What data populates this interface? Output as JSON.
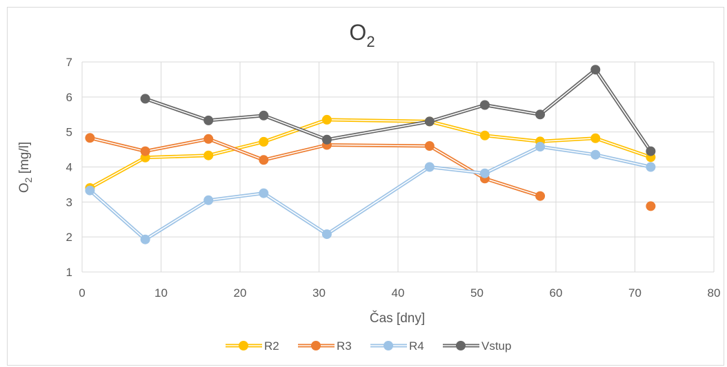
{
  "chart_data": {
    "type": "line",
    "title": "O",
    "title_subscript": "2",
    "xlabel": "Čas [dny]",
    "ylabel_main": "O",
    "ylabel_sub": "2",
    "ylabel_rest": " [mg/l]",
    "xlim": [
      0,
      80
    ],
    "ylim": [
      1,
      7
    ],
    "xticks": [
      0,
      10,
      20,
      30,
      40,
      50,
      60,
      70,
      80
    ],
    "yticks": [
      1,
      2,
      3,
      4,
      5,
      6,
      7
    ],
    "grid": true,
    "legend_position": "bottom",
    "series": [
      {
        "name": "R2",
        "color": "#FFC000",
        "points": [
          [
            1,
            3.4
          ],
          [
            8,
            4.27
          ],
          [
            16,
            4.33
          ],
          [
            23,
            4.72
          ],
          [
            31,
            5.35
          ],
          [
            44,
            5.3
          ],
          [
            51,
            4.9
          ],
          [
            58,
            4.73
          ],
          [
            65,
            4.82
          ],
          [
            72,
            4.28
          ]
        ]
      },
      {
        "name": "R3",
        "color": "#ED7D31",
        "points": [
          [
            1,
            4.83
          ],
          [
            8,
            4.45
          ],
          [
            16,
            4.8
          ],
          [
            23,
            4.2
          ],
          [
            31,
            4.63
          ],
          [
            44,
            4.6
          ],
          [
            51,
            3.67
          ],
          [
            58,
            3.17
          ],
          [
            72,
            2.88
          ]
        ],
        "segments": [
          [
            0,
            1,
            2,
            3,
            4,
            5,
            6,
            7
          ],
          [
            8
          ]
        ]
      },
      {
        "name": "R4",
        "color": "#9DC3E6",
        "points": [
          [
            1,
            3.33
          ],
          [
            8,
            1.93
          ],
          [
            16,
            3.05
          ],
          [
            23,
            3.25
          ],
          [
            31,
            2.08
          ],
          [
            44,
            4.0
          ],
          [
            51,
            3.82
          ],
          [
            58,
            4.58
          ],
          [
            65,
            4.35
          ],
          [
            72,
            4.0
          ]
        ]
      },
      {
        "name": "Vstup",
        "color": "#666666",
        "points": [
          [
            8,
            5.95
          ],
          [
            16,
            5.33
          ],
          [
            23,
            5.47
          ],
          [
            31,
            4.78
          ],
          [
            44,
            5.3
          ],
          [
            51,
            5.77
          ],
          [
            58,
            5.5
          ],
          [
            65,
            6.78
          ],
          [
            72,
            4.45
          ]
        ]
      }
    ]
  }
}
